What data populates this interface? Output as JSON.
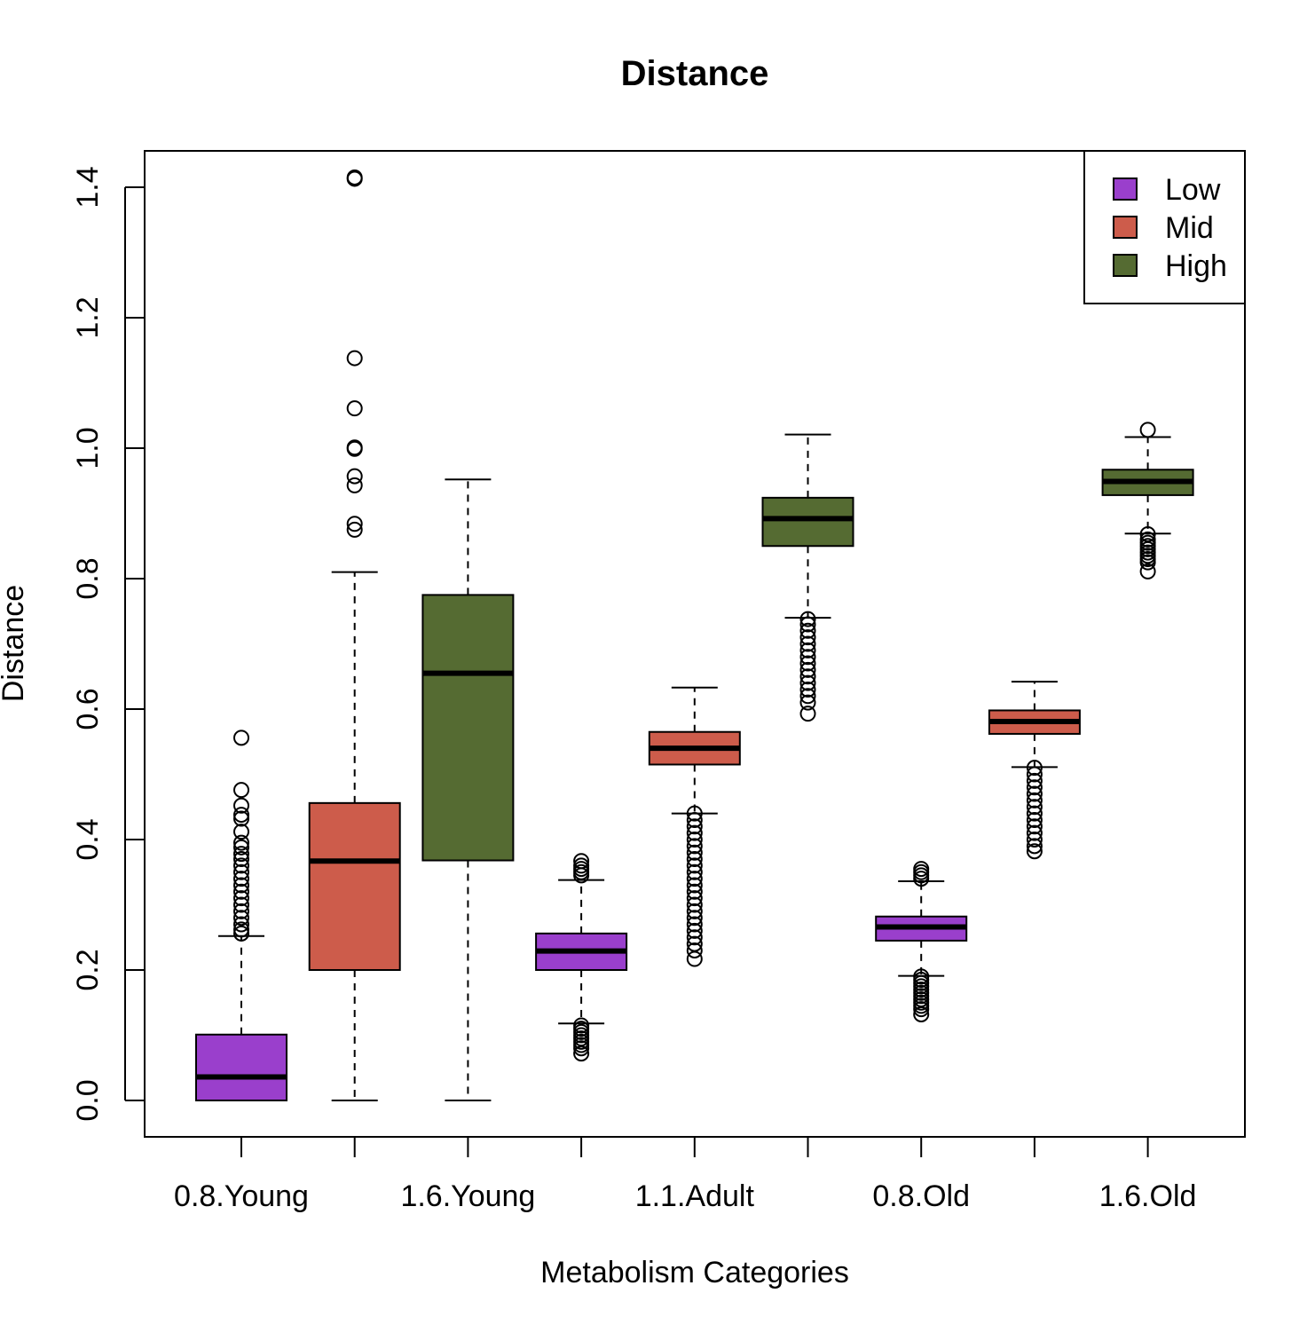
{
  "chart_data": {
    "type": "boxplot",
    "title": "Distance",
    "xlabel": "Metabolism Categories",
    "ylabel": "Distance",
    "ylim": [
      -0.025,
      1.475
    ],
    "yticks": [
      0.0,
      0.2,
      0.4,
      0.6,
      0.8,
      1.0,
      1.2,
      1.4
    ],
    "ytick_labels": [
      "0.0",
      "0.2",
      "0.4",
      "0.6",
      "0.8",
      "1.0",
      "1.2",
      "1.4"
    ],
    "xtick_labels": [
      "0.8.Young",
      "1.6.Young",
      "1.1.Adult",
      "0.8.Old",
      "1.6.Old"
    ],
    "legend": {
      "position": "top-right",
      "entries": [
        {
          "name": "Low",
          "color": "#9a3fcc"
        },
        {
          "name": "Mid",
          "color": "#cd5c4b"
        },
        {
          "name": "High",
          "color": "#556b32"
        }
      ]
    },
    "boxes": [
      {
        "group": "Low",
        "color": "#9a3fcc",
        "whisker_low": 0.0,
        "q1": 0.0,
        "median": 0.036,
        "q3": 0.101,
        "whisker_high": 0.252,
        "outliers": [
          0.556,
          0.476,
          0.452,
          0.438,
          0.432,
          0.412,
          0.395,
          0.388,
          0.378,
          0.37,
          0.36,
          0.35,
          0.34,
          0.33,
          0.32,
          0.31,
          0.3,
          0.29,
          0.28,
          0.27,
          0.262,
          0.256
        ]
      },
      {
        "group": "Mid",
        "color": "#cd5c4b",
        "whisker_low": 0.0,
        "q1": 0.2,
        "median": 0.367,
        "q3": 0.456,
        "whisker_high": 0.81,
        "outliers": [
          1.415,
          1.413,
          1.138,
          1.061,
          1.001,
          0.999,
          0.957,
          0.943,
          0.884,
          0.875
        ]
      },
      {
        "group": "High",
        "color": "#556b32",
        "whisker_low": 0.0,
        "q1": 0.368,
        "median": 0.655,
        "q3": 0.775,
        "whisker_high": 0.952,
        "outliers": []
      },
      {
        "group": "Low",
        "color": "#9a3fcc",
        "whisker_low": 0.118,
        "q1": 0.2,
        "median": 0.229,
        "q3": 0.256,
        "whisker_high": 0.338,
        "outliers": [
          0.367,
          0.36,
          0.355,
          0.35,
          0.345,
          0.115,
          0.11,
          0.105,
          0.1,
          0.095,
          0.09,
          0.085,
          0.08,
          0.072
        ]
      },
      {
        "group": "Mid",
        "color": "#cd5c4b",
        "whisker_low": 0.44,
        "q1": 0.515,
        "median": 0.54,
        "q3": 0.565,
        "whisker_high": 0.633,
        "outliers": [
          0.44,
          0.43,
          0.42,
          0.41,
          0.4,
          0.39,
          0.38,
          0.37,
          0.36,
          0.35,
          0.34,
          0.33,
          0.32,
          0.31,
          0.3,
          0.29,
          0.28,
          0.27,
          0.26,
          0.25,
          0.24,
          0.23,
          0.217
        ]
      },
      {
        "group": "High",
        "color": "#556b32",
        "whisker_low": 0.74,
        "q1": 0.85,
        "median": 0.892,
        "q3": 0.924,
        "whisker_high": 1.021,
        "outliers": [
          0.738,
          0.73,
          0.72,
          0.71,
          0.7,
          0.69,
          0.68,
          0.67,
          0.66,
          0.65,
          0.64,
          0.63,
          0.62,
          0.61,
          0.593
        ]
      },
      {
        "group": "Low",
        "color": "#9a3fcc",
        "whisker_low": 0.191,
        "q1": 0.245,
        "median": 0.266,
        "q3": 0.282,
        "whisker_high": 0.336,
        "outliers": [
          0.355,
          0.35,
          0.345,
          0.34,
          0.19,
          0.185,
          0.18,
          0.175,
          0.17,
          0.165,
          0.16,
          0.155,
          0.15,
          0.145,
          0.14,
          0.132
        ]
      },
      {
        "group": "Mid",
        "color": "#cd5c4b",
        "whisker_low": 0.511,
        "q1": 0.562,
        "median": 0.581,
        "q3": 0.598,
        "whisker_high": 0.642,
        "outliers": [
          0.51,
          0.5,
          0.49,
          0.48,
          0.47,
          0.46,
          0.45,
          0.44,
          0.43,
          0.42,
          0.41,
          0.4,
          0.39,
          0.382
        ]
      },
      {
        "group": "High",
        "color": "#556b32",
        "whisker_low": 0.869,
        "q1": 0.928,
        "median": 0.949,
        "q3": 0.967,
        "whisker_high": 1.017,
        "outliers": [
          1.028,
          0.868,
          0.86,
          0.855,
          0.85,
          0.845,
          0.84,
          0.835,
          0.83,
          0.825,
          0.811
        ]
      }
    ]
  }
}
